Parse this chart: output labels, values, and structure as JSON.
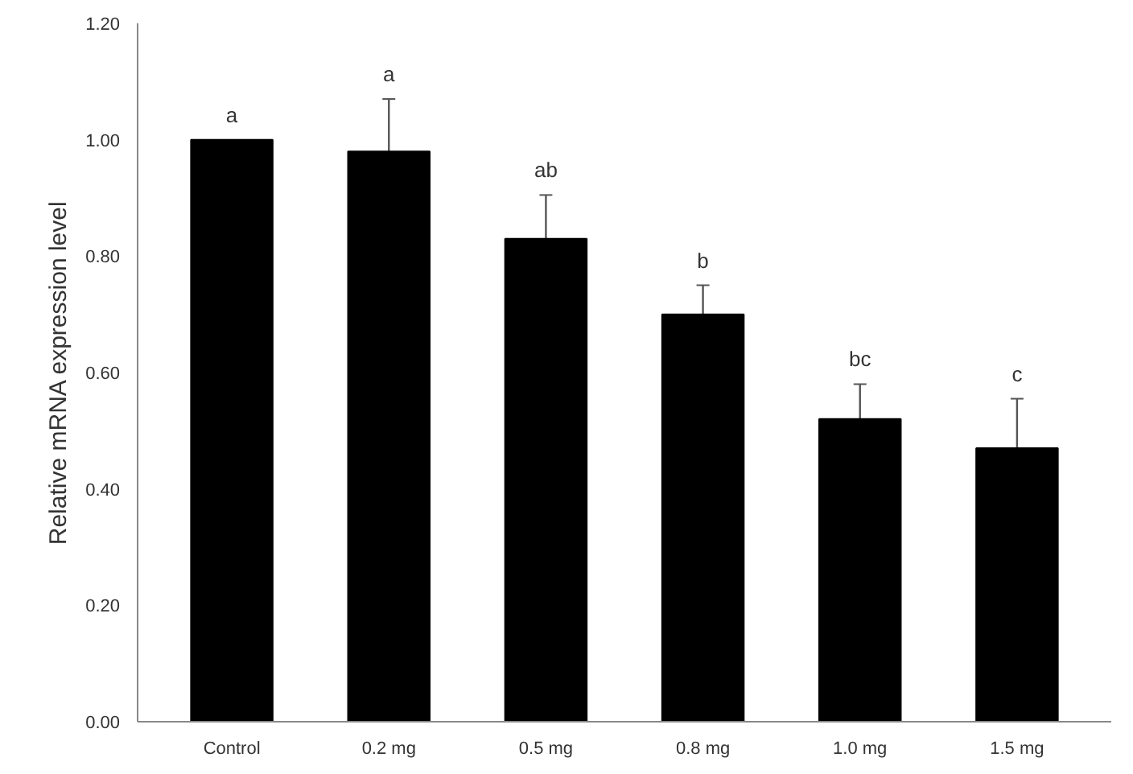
{
  "chart_data": {
    "type": "bar",
    "ylabel": "Relative mRNA expression level",
    "categories": [
      "Control",
      "0.2 mg",
      "0.5 mg",
      "0.8 mg",
      "1.0 mg",
      "1.5 mg"
    ],
    "values": [
      1.0,
      0.98,
      0.83,
      0.7,
      0.52,
      0.47
    ],
    "errors": [
      null,
      [
        0.98,
        1.07
      ],
      [
        0.83,
        0.905
      ],
      [
        0.7,
        0.75
      ],
      [
        0.52,
        0.58
      ],
      [
        0.47,
        0.555
      ]
    ],
    "color": "#000000",
    "ylim": [
      0,
      1.2
    ],
    "yticks": [
      {
        "value": 0,
        "label": "0.00"
      },
      {
        "value": 0.2,
        "label": "0.20"
      },
      {
        "value": 0.4,
        "label": "0.40"
      },
      {
        "value": 0.6,
        "label": "0.60"
      },
      {
        "value": 0.8,
        "label": "0.80"
      },
      {
        "value": 1.0,
        "label": "1.00"
      },
      {
        "value": 1.2,
        "label": "1.20"
      }
    ],
    "annotations": [
      {
        "text": "a",
        "x": "Control",
        "y": 1.0
      },
      {
        "text": "a",
        "x": "0.2 mg",
        "y": 1.07
      },
      {
        "text": "ab",
        "x": "0.5 mg",
        "y": 0.905
      },
      {
        "text": "b",
        "x": "0.8 mg",
        "y": 0.75
      },
      {
        "text": "bc",
        "x": "1.0 mg",
        "y": 0.58
      },
      {
        "text": "c",
        "x": "1.5 mg",
        "y": 0.555
      }
    ],
    "grid": false
  }
}
